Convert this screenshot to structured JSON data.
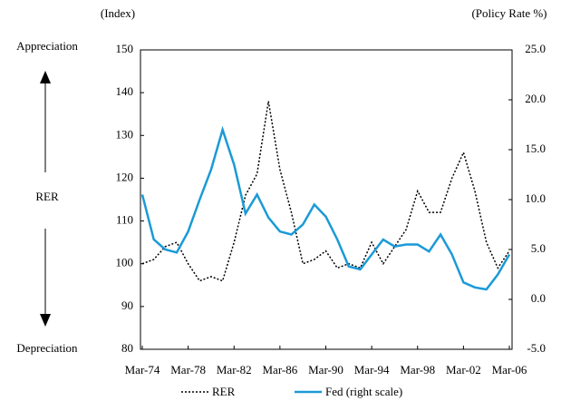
{
  "chart_data": {
    "type": "line",
    "left_unit_label": "(Index)",
    "right_unit_label": "(Policy Rate %)",
    "top_label": "Appreciation",
    "bottom_label": "Depreciation",
    "side_label": "RER",
    "categories": [
      "Mar-74",
      null,
      null,
      null,
      "Mar-78",
      null,
      null,
      null,
      "Mar-82",
      null,
      null,
      null,
      "Mar-86",
      null,
      null,
      null,
      "Mar-90",
      null,
      null,
      null,
      "Mar-94",
      null,
      null,
      null,
      "Mar-98",
      null,
      null,
      null,
      "Mar-02",
      null,
      null,
      null,
      "Mar-06"
    ],
    "series": [
      {
        "name": "RER",
        "color": "#000000",
        "dash": true,
        "values": [
          100,
          101,
          104,
          105,
          100,
          96,
          97,
          96,
          105,
          116,
          121,
          138,
          122,
          112,
          100,
          101,
          103,
          99,
          100,
          99,
          105,
          100,
          104,
          108,
          117,
          112,
          112,
          120,
          126,
          117,
          105,
          99,
          103
        ]
      },
      {
        "name": "Fed (right scale)",
        "color": "#1a9ad6",
        "axis": "y2",
        "values": [
          10.5,
          6,
          5,
          4.7,
          6.8,
          10,
          13,
          17,
          13.5,
          8.6,
          10.5,
          8.2,
          6.8,
          6.5,
          7.5,
          9.5,
          8.3,
          6,
          3.3,
          3,
          4.5,
          6,
          5.3,
          5.5,
          5.5,
          4.8,
          6.5,
          4.5,
          1.7,
          1.2,
          1,
          2.5,
          4.5
        ]
      }
    ],
    "ylim": [
      80,
      150
    ],
    "yticks": [
      80,
      90,
      100,
      110,
      120,
      130,
      140,
      150
    ],
    "y2lim": [
      -5,
      25
    ],
    "y2ticks": [
      {
        "value": -5,
        "label": "-5.0"
      },
      {
        "value": 0,
        "label": "0.0"
      },
      {
        "value": 5,
        "label": "5.0"
      },
      {
        "value": 10,
        "label": "10.0"
      },
      {
        "value": 15,
        "label": "15.0"
      },
      {
        "value": 20,
        "label": "20.0"
      },
      {
        "value": 25,
        "label": "25.0"
      }
    ]
  }
}
